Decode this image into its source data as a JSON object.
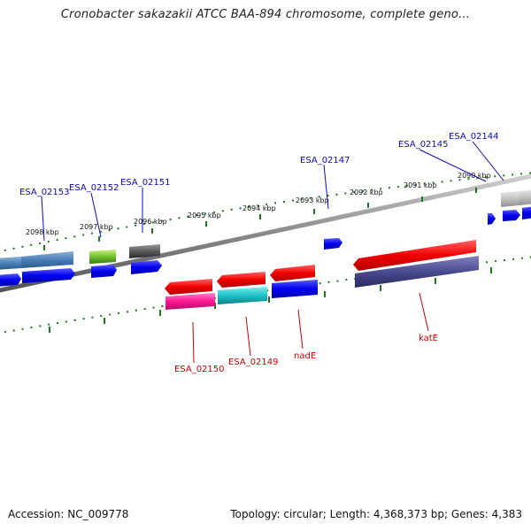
{
  "title": "Cronobacter sakazakii ATCC BAA-894 chromosome, complete geno...",
  "footer": {
    "accession": "Accession: NC_009778",
    "summary": "Topology: circular; Length: 4,368,373 bp; Genes: 4,383"
  },
  "colors": {
    "backbone": "#888888",
    "tick": "#1a7a1a",
    "top_label": "#0a0ab4",
    "bottom_label": "#c80000"
  },
  "scale_ticks": [
    "2098 kbp",
    "2097 kbp",
    "2096 kbp",
    "2095 kbp",
    "2094 kbp",
    "2093 kbp",
    "2092 kbp",
    "2091 kbp",
    "2090 kbp"
  ],
  "genes_top": [
    "ESA_02153",
    "ESA_02152",
    "ESA_02151",
    "ESA_02147",
    "ESA_02145",
    "ESA_02144"
  ],
  "genes_bottom": [
    "ESA_02150",
    "ESA_02149",
    "nadE",
    "katE"
  ]
}
